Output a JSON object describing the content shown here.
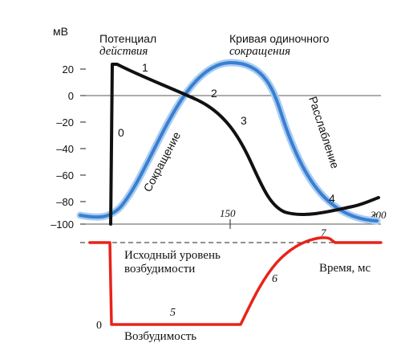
{
  "axis": {
    "unit": "мВ",
    "ticks": [
      "20",
      "0",
      "–20",
      "–40",
      "–60",
      "–80",
      "–100"
    ]
  },
  "labels": {
    "ap_title_1": "Потенциал",
    "ap_title_2": "действия",
    "twitch_title_1": "Кривая одиночного",
    "twitch_title_2": "сокращения",
    "contraction": "Сокращение",
    "relaxation": "Расслабление",
    "baseline_1": "Исходный уровень",
    "baseline_2": "возбудимости",
    "time": "Время, мс",
    "excitability": "Возбудимость",
    "zero_level": "0",
    "t150": "150",
    "t300": "300"
  },
  "phases": {
    "p0": "0",
    "p1": "1",
    "p2": "2",
    "p3": "3",
    "p4": "4",
    "p5": "5",
    "p6": "6",
    "p7": "7"
  },
  "colors": {
    "action_potential": "#111111",
    "twitch": "#3a7fd0",
    "twitch_glow": "#a9cdf2",
    "excitability": "#e8231a"
  }
}
